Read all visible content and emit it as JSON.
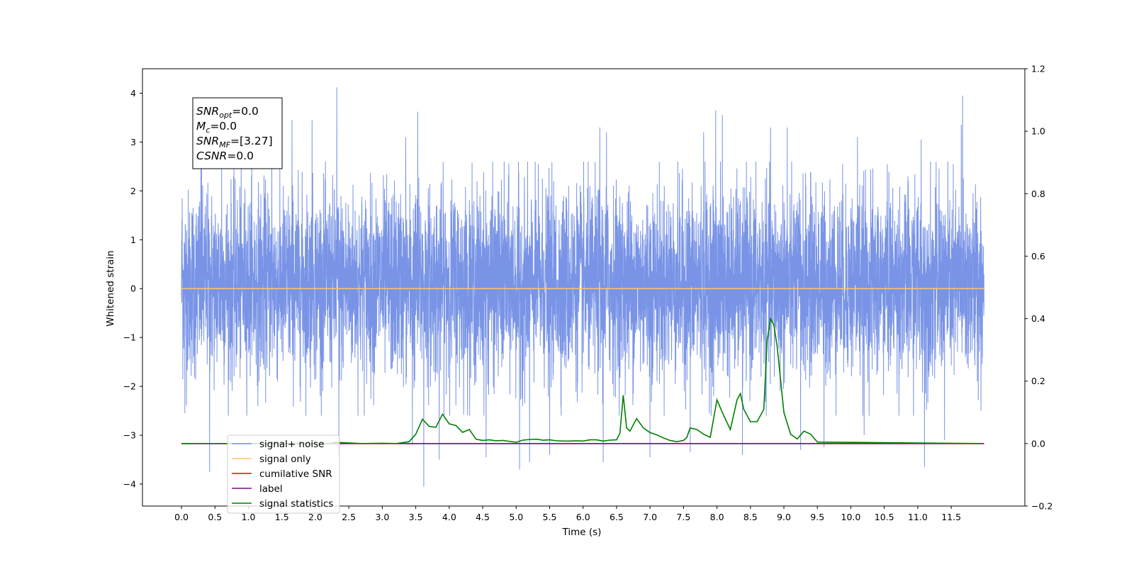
{
  "chart_data": {
    "type": "line",
    "xlabel": "Time (s)",
    "ylabel": "Whitened strain",
    "xlim": [
      -0.5833,
      12.6
    ],
    "ylim": [
      -4.45,
      4.5
    ],
    "y2lim": [
      -0.2,
      1.2
    ],
    "x_ticks": [
      0.0,
      0.5,
      1.0,
      1.5,
      2.0,
      2.5,
      3.0,
      3.5,
      4.0,
      4.5,
      5.0,
      5.5,
      6.0,
      6.5,
      7.0,
      7.5,
      8.0,
      8.5,
      9.0,
      9.5,
      10.0,
      10.5,
      11.0,
      11.5
    ],
    "x_tick_labels": [
      "0.0",
      "0.5",
      "1.0",
      "1.5",
      "2.0",
      "2.5",
      "3.0",
      "3.5",
      "4.0",
      "4.5",
      "5.0",
      "5.5",
      "6.0",
      "6.5",
      "7.0",
      "7.5",
      "8.0",
      "8.5",
      "9.0",
      "9.5",
      "10.0",
      "10.5",
      "11.0",
      "11.5"
    ],
    "y_ticks": [
      -4,
      -3,
      -2,
      -1,
      0,
      1,
      2,
      3,
      4
    ],
    "y_tick_labels": [
      "−4",
      "−3",
      "−2",
      "−1",
      "0",
      "1",
      "2",
      "3",
      "4"
    ],
    "y2_ticks": [
      -0.2,
      0.0,
      0.2,
      0.4,
      0.6,
      0.8,
      1.0,
      1.2
    ],
    "y2_tick_labels": [
      "−0.2",
      "0.0",
      "0.2",
      "0.4",
      "0.6",
      "0.8",
      "1.0",
      "1.2"
    ],
    "grid": false,
    "legend_position": "lower-left",
    "annotation": {
      "lines": [
        {
          "sym": "SNR",
          "sub": "opt",
          "val": "=0.0"
        },
        {
          "sym": "M",
          "sub": "c",
          "val": "=0.0"
        },
        {
          "sym": "SNR",
          "sub": "MF",
          "val": "=[3.27]"
        },
        {
          "sym": "CSNR",
          "sub": "",
          "val": "=0.0"
        }
      ]
    },
    "noise": {
      "x_range": [
        0.0,
        11.99
      ],
      "approx_range": [
        -2.5,
        2.0
      ],
      "peaks": [
        [
          0.01,
          1.85
        ],
        [
          0.05,
          -2.55
        ],
        [
          0.3,
          3.0
        ],
        [
          0.42,
          -3.75
        ],
        [
          0.6,
          2.7
        ],
        [
          1.05,
          3.45
        ],
        [
          1.35,
          3.05
        ],
        [
          1.65,
          3.45
        ],
        [
          1.95,
          3.45
        ],
        [
          2.32,
          4.12
        ],
        [
          2.35,
          -3.4
        ],
        [
          3.35,
          3.1
        ],
        [
          3.45,
          -3.2
        ],
        [
          3.53,
          3.62
        ],
        [
          3.62,
          -4.05
        ],
        [
          3.85,
          -3.5
        ],
        [
          4.55,
          -3.45
        ],
        [
          5.05,
          -3.7
        ],
        [
          5.2,
          -3.55
        ],
        [
          5.5,
          -3.4
        ],
        [
          6.25,
          3.3
        ],
        [
          6.3,
          -3.55
        ],
        [
          6.35,
          3.2
        ],
        [
          7.0,
          -3.45
        ],
        [
          7.6,
          -3.35
        ],
        [
          7.8,
          3.2
        ],
        [
          7.98,
          3.65
        ],
        [
          8.08,
          3.55
        ],
        [
          8.38,
          -3.4
        ],
        [
          8.8,
          3.3
        ],
        [
          9.05,
          3.3
        ],
        [
          9.25,
          -3.3
        ],
        [
          9.6,
          -3.25
        ],
        [
          10.1,
          3.1
        ],
        [
          10.2,
          -3.0
        ],
        [
          11.1,
          -3.65
        ],
        [
          11.05,
          3.05
        ],
        [
          11.4,
          -3.1
        ],
        [
          11.65,
          3.35
        ],
        [
          11.67,
          3.95
        ]
      ]
    },
    "series": [
      {
        "name": "signal+ noise",
        "color": "#7994e6",
        "axis": "left",
        "kind": "noise"
      },
      {
        "name": "signal only",
        "color": "#ffc46b",
        "axis": "left",
        "x": [
          0.0,
          11.99
        ],
        "y": [
          0.0,
          0.0
        ]
      },
      {
        "name": "cumilative SNR",
        "color": "#ff0000",
        "axis": "right",
        "x": [
          0.0,
          11.99
        ],
        "y": [
          0.0,
          0.0
        ]
      },
      {
        "name": "label",
        "color": "#7b0f7b",
        "axis": "right",
        "x": [
          0.0,
          11.99
        ],
        "y": [
          0.0,
          0.0
        ]
      },
      {
        "name": "signal statistics",
        "color": "#008000",
        "axis": "right",
        "x": [
          0.0,
          2.2,
          2.3,
          2.5,
          2.7,
          3.0,
          3.2,
          3.4,
          3.5,
          3.6,
          3.7,
          3.8,
          3.9,
          4.0,
          4.1,
          4.2,
          4.3,
          4.4,
          4.5,
          4.6,
          4.7,
          4.8,
          4.9,
          5.0,
          5.1,
          5.2,
          5.3,
          5.4,
          5.5,
          5.6,
          5.7,
          5.8,
          5.9,
          6.0,
          6.1,
          6.2,
          6.3,
          6.4,
          6.5,
          6.55,
          6.6,
          6.65,
          6.7,
          6.8,
          6.9,
          7.0,
          7.1,
          7.2,
          7.3,
          7.4,
          7.5,
          7.55,
          7.6,
          7.7,
          7.8,
          7.9,
          8.0,
          8.1,
          8.2,
          8.3,
          8.35,
          8.4,
          8.5,
          8.6,
          8.7,
          8.75,
          8.8,
          8.85,
          8.9,
          9.0,
          9.1,
          9.2,
          9.3,
          9.4,
          9.5,
          11.94
        ],
        "y": [
          0.0,
          0.0,
          0.004,
          0.002,
          0.0,
          0.001,
          0.0,
          0.006,
          0.03,
          0.078,
          0.055,
          0.052,
          0.094,
          0.063,
          0.058,
          0.036,
          0.045,
          0.014,
          0.01,
          0.012,
          0.009,
          0.01,
          0.007,
          0.004,
          0.011,
          0.013,
          0.014,
          0.011,
          0.012,
          0.009,
          0.008,
          0.008,
          0.009,
          0.008,
          0.012,
          0.012,
          0.008,
          0.011,
          0.012,
          0.033,
          0.155,
          0.05,
          0.04,
          0.08,
          0.05,
          0.035,
          0.028,
          0.018,
          0.01,
          0.006,
          0.01,
          0.02,
          0.05,
          0.045,
          0.03,
          0.02,
          0.14,
          0.09,
          0.045,
          0.14,
          0.16,
          0.11,
          0.07,
          0.07,
          0.11,
          0.33,
          0.4,
          0.38,
          0.31,
          0.1,
          0.03,
          0.015,
          0.04,
          0.03,
          0.005,
          0.0
        ]
      }
    ]
  }
}
